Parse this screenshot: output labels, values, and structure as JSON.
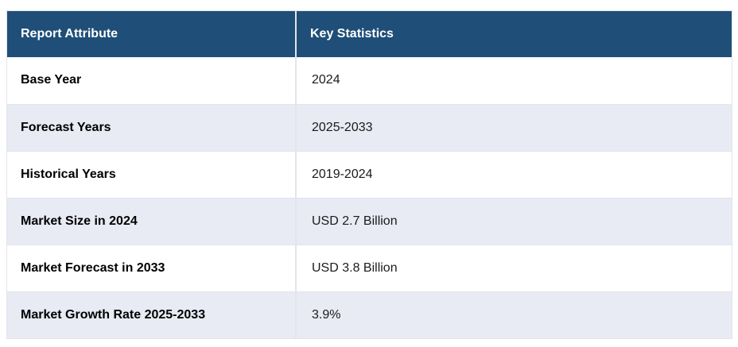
{
  "table": {
    "columns": [
      "Report Attribute",
      "Key Statistics"
    ],
    "rows": [
      {
        "attribute": "Base Year",
        "value": "2024"
      },
      {
        "attribute": "Forecast Years",
        "value": "2025-2033"
      },
      {
        "attribute": "Historical Years",
        "value": "2019-2024"
      },
      {
        "attribute": "Market Size in 2024",
        "value": "USD 2.7 Billion"
      },
      {
        "attribute": "Market Forecast in 2033",
        "value": "USD 3.8 Billion"
      },
      {
        "attribute": "Market Growth Rate 2025-2033",
        "value": "3.9%"
      }
    ],
    "colors": {
      "header_bg": "#1F4E78",
      "header_text": "#FFFFFF",
      "row_bg": "#FFFFFF",
      "row_alt_bg": "#E8EAF4",
      "border": "#E3E5EC",
      "label_text": "#000000",
      "value_text": "#1B1B1B"
    }
  }
}
